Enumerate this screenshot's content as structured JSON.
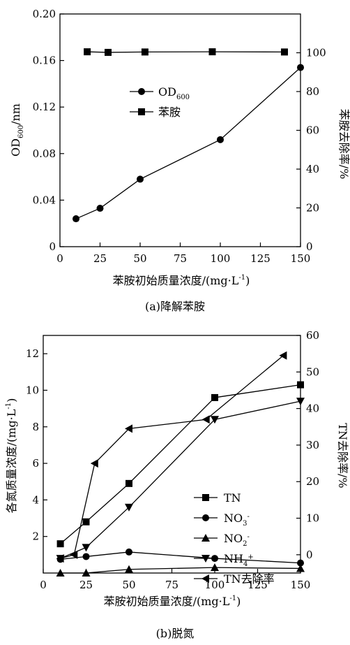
{
  "chart_data": [
    {
      "type": "line",
      "caption": "(a)降解苯胺",
      "xlabel": "苯胺初始质量浓度/(mg·L⁻¹)",
      "ylabel_left": "OD600/nm",
      "ylabel_right": "苯胺去除率/%",
      "xlim": [
        0,
        150
      ],
      "x_ticks": [
        "0",
        "25",
        "50",
        "75",
        "100",
        "125",
        "150"
      ],
      "ylim_left": [
        0,
        0.2
      ],
      "y_ticks_left": [
        "0",
        "0.04",
        "0.08",
        "0.12",
        "0.16",
        "0.20"
      ],
      "ylim_right": [
        0,
        120
      ],
      "y_ticks_right": [
        "0",
        "20",
        "40",
        "60",
        "80",
        "100"
      ],
      "grid": false,
      "legend_position": "center-left",
      "series": [
        {
          "name": "OD600",
          "axis": "left",
          "marker": "circle",
          "x": [
            10,
            25,
            50,
            100,
            150
          ],
          "y": [
            0.024,
            0.033,
            0.058,
            0.092,
            0.154
          ]
        },
        {
          "name": "苯胺",
          "axis": "right",
          "marker": "square",
          "x": [
            17,
            30,
            53,
            95,
            140
          ],
          "y": [
            100.5,
            100.2,
            100.4,
            100.5,
            100.4
          ]
        }
      ]
    },
    {
      "type": "line",
      "caption": "(b)脱氮",
      "xlabel": "苯胺初始质量浓度/(mg·L⁻¹)",
      "ylabel_left": "各氮质量浓度/(mg·L⁻¹)",
      "ylabel_right": "TN去除率/%",
      "xlim": [
        0,
        150
      ],
      "x_ticks": [
        "0",
        "25",
        "50",
        "75",
        "100",
        "125",
        "150"
      ],
      "ylim_left": [
        0,
        13
      ],
      "y_ticks_left": [
        "2",
        "4",
        "6",
        "8",
        "10",
        "12"
      ],
      "ylim_right": [
        -5,
        60
      ],
      "y_ticks_right": [
        "0",
        "10",
        "20",
        "30",
        "40",
        "50",
        "60"
      ],
      "grid": false,
      "legend_position": "center-right",
      "series": [
        {
          "name": "TN",
          "axis": "left",
          "marker": "square",
          "x": [
            10,
            25,
            50,
            100,
            150
          ],
          "y": [
            1.6,
            2.8,
            4.9,
            9.6,
            10.3
          ]
        },
        {
          "name": "NO3-",
          "axis": "left",
          "marker": "circle",
          "x": [
            10,
            25,
            50,
            100,
            150
          ],
          "y": [
            0.75,
            0.9,
            1.15,
            0.8,
            0.55
          ]
        },
        {
          "name": "NO2-",
          "axis": "left",
          "marker": "triangle-up",
          "x": [
            10,
            25,
            50,
            100,
            150
          ],
          "y": [
            0.0,
            0.0,
            0.2,
            0.3,
            0.25
          ]
        },
        {
          "name": "NH4+",
          "axis": "left",
          "marker": "triangle-down",
          "x": [
            10,
            25,
            50,
            100,
            150
          ],
          "y": [
            0.8,
            1.4,
            3.6,
            8.4,
            9.4
          ]
        },
        {
          "name": "TN去除率",
          "axis": "right",
          "marker": "triangle-left",
          "x": [
            10,
            18,
            30,
            50,
            95,
            140
          ],
          "y": [
            -1,
            0,
            25,
            34.5,
            37,
            54.5
          ]
        }
      ]
    }
  ]
}
